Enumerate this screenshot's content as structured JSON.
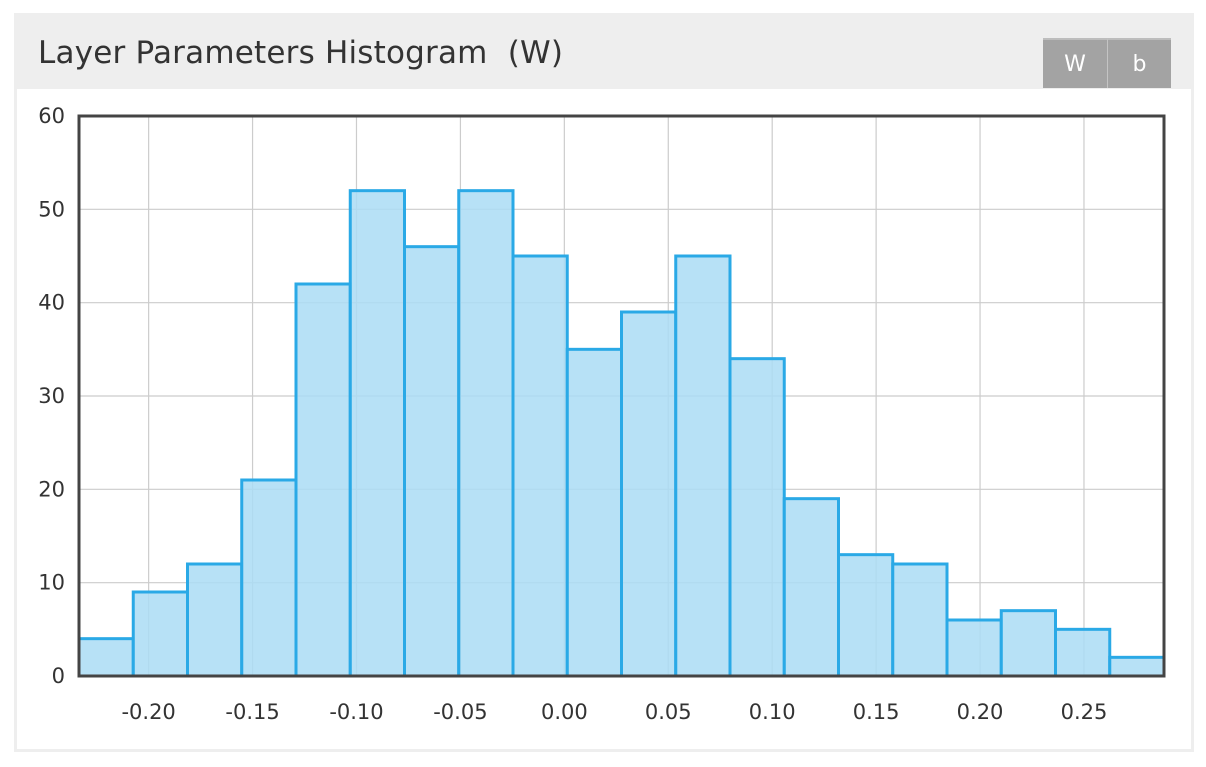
{
  "panel": {
    "title": "Layer Parameters Histogram  (W)",
    "buttons": [
      {
        "label": "W"
      },
      {
        "label": "b"
      }
    ]
  },
  "colors": {
    "bar_fill": "#aadcf4",
    "bar_stroke": "#2aa9e6",
    "grid": "#cccccc",
    "frame": "#444444",
    "panel_bg": "#eeeeee",
    "button_bg": "#a3a3a3"
  },
  "chart_data": {
    "type": "bar",
    "title": "Layer Parameters Histogram  (W)",
    "xlabel": "",
    "ylabel": "",
    "xlim": [
      -0.2335,
      0.2885
    ],
    "ylim": [
      0,
      60
    ],
    "x_ticks": [
      "-0.20",
      "-0.15",
      "-0.10",
      "-0.05",
      "0.00",
      "0.05",
      "0.10",
      "0.15",
      "0.20",
      "0.25"
    ],
    "y_ticks": [
      "0",
      "10",
      "20",
      "30",
      "40",
      "50",
      "60"
    ],
    "bin_start": -0.2335,
    "bin_width": 0.0261,
    "values": [
      4,
      9,
      12,
      21,
      42,
      52,
      46,
      52,
      45,
      35,
      39,
      45,
      34,
      19,
      13,
      12,
      6,
      7,
      5,
      2
    ],
    "grid": true,
    "legend": "none"
  }
}
